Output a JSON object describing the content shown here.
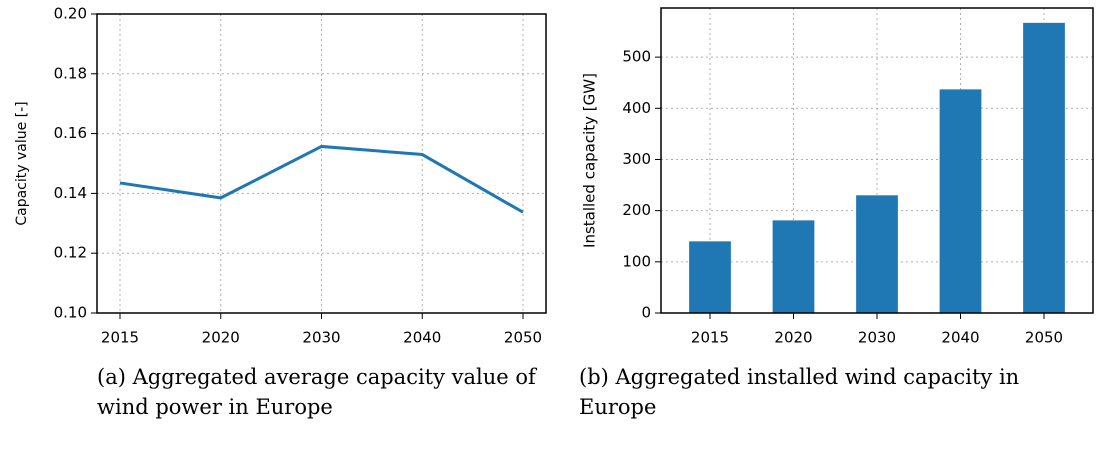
{
  "chart_data": [
    {
      "type": "line",
      "ylabel": "Capacity value [-]",
      "categories": [
        "2015",
        "2020",
        "2030",
        "2040",
        "2050"
      ],
      "values": [
        0.1435,
        0.1385,
        0.1557,
        0.153,
        0.1337
      ],
      "color": "#1f77b4",
      "ylim": [
        0.1,
        0.2
      ],
      "yticks": [
        {
          "value": 0.1,
          "label": "0.10"
        },
        {
          "value": 0.12,
          "label": "0.12"
        },
        {
          "value": 0.14,
          "label": "0.14"
        },
        {
          "value": 0.16,
          "label": "0.16"
        },
        {
          "value": 0.18,
          "label": "0.18"
        },
        {
          "value": 0.2,
          "label": "0.20"
        }
      ],
      "grid": true,
      "caption": "(a) Aggregated average capacity value of wind power in Europe"
    },
    {
      "type": "bar",
      "ylabel": "Installed capacity [GW]",
      "categories": [
        "2015",
        "2020",
        "2030",
        "2040",
        "2050"
      ],
      "values": [
        140,
        181,
        230,
        437,
        567
      ],
      "color": "#1f77b4",
      "ylim": [
        0,
        596
      ],
      "yticks": [
        0,
        100,
        200,
        300,
        400,
        500
      ],
      "grid": true,
      "caption": "(b) Aggregated installed wind capacity in Europe"
    }
  ]
}
